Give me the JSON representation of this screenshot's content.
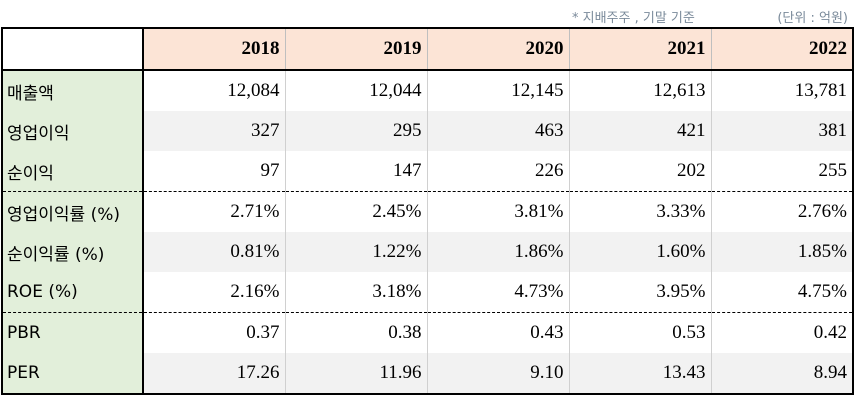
{
  "note": "* 지배주주 , 기말 기준",
  "unit": "(단위 : 억원)",
  "years": [
    "2018",
    "2019",
    "2020",
    "2021",
    "2022"
  ],
  "rows": [
    {
      "label": "매출액",
      "values": [
        "12,084",
        "12,044",
        "12,145",
        "12,613",
        "13,781"
      ]
    },
    {
      "label": "영업이익",
      "values": [
        "327",
        "295",
        "463",
        "421",
        "381"
      ]
    },
    {
      "label": "순이익",
      "values": [
        "97",
        "147",
        "226",
        "202",
        "255"
      ]
    },
    {
      "label": "영업이익률 (%)",
      "values": [
        "2.71%",
        "2.45%",
        "3.81%",
        "3.33%",
        "2.76%"
      ]
    },
    {
      "label": "순이익률 (%)",
      "values": [
        "0.81%",
        "1.22%",
        "1.86%",
        "1.60%",
        "1.85%"
      ]
    },
    {
      "label": "ROE (%)",
      "values": [
        "2.16%",
        "3.18%",
        "4.73%",
        "3.95%",
        "4.75%"
      ]
    },
    {
      "label": "PBR",
      "values": [
        "0.37",
        "0.38",
        "0.43",
        "0.53",
        "0.42"
      ]
    },
    {
      "label": "PER",
      "values": [
        "17.26",
        "11.96",
        "9.10",
        "13.43",
        "8.94"
      ]
    }
  ],
  "colors": {
    "header_fill": "#fce4d6",
    "label_fill": "#e2efda",
    "alt_row_fill": "#f2f2f2",
    "note_text": "#7a8a9a"
  }
}
